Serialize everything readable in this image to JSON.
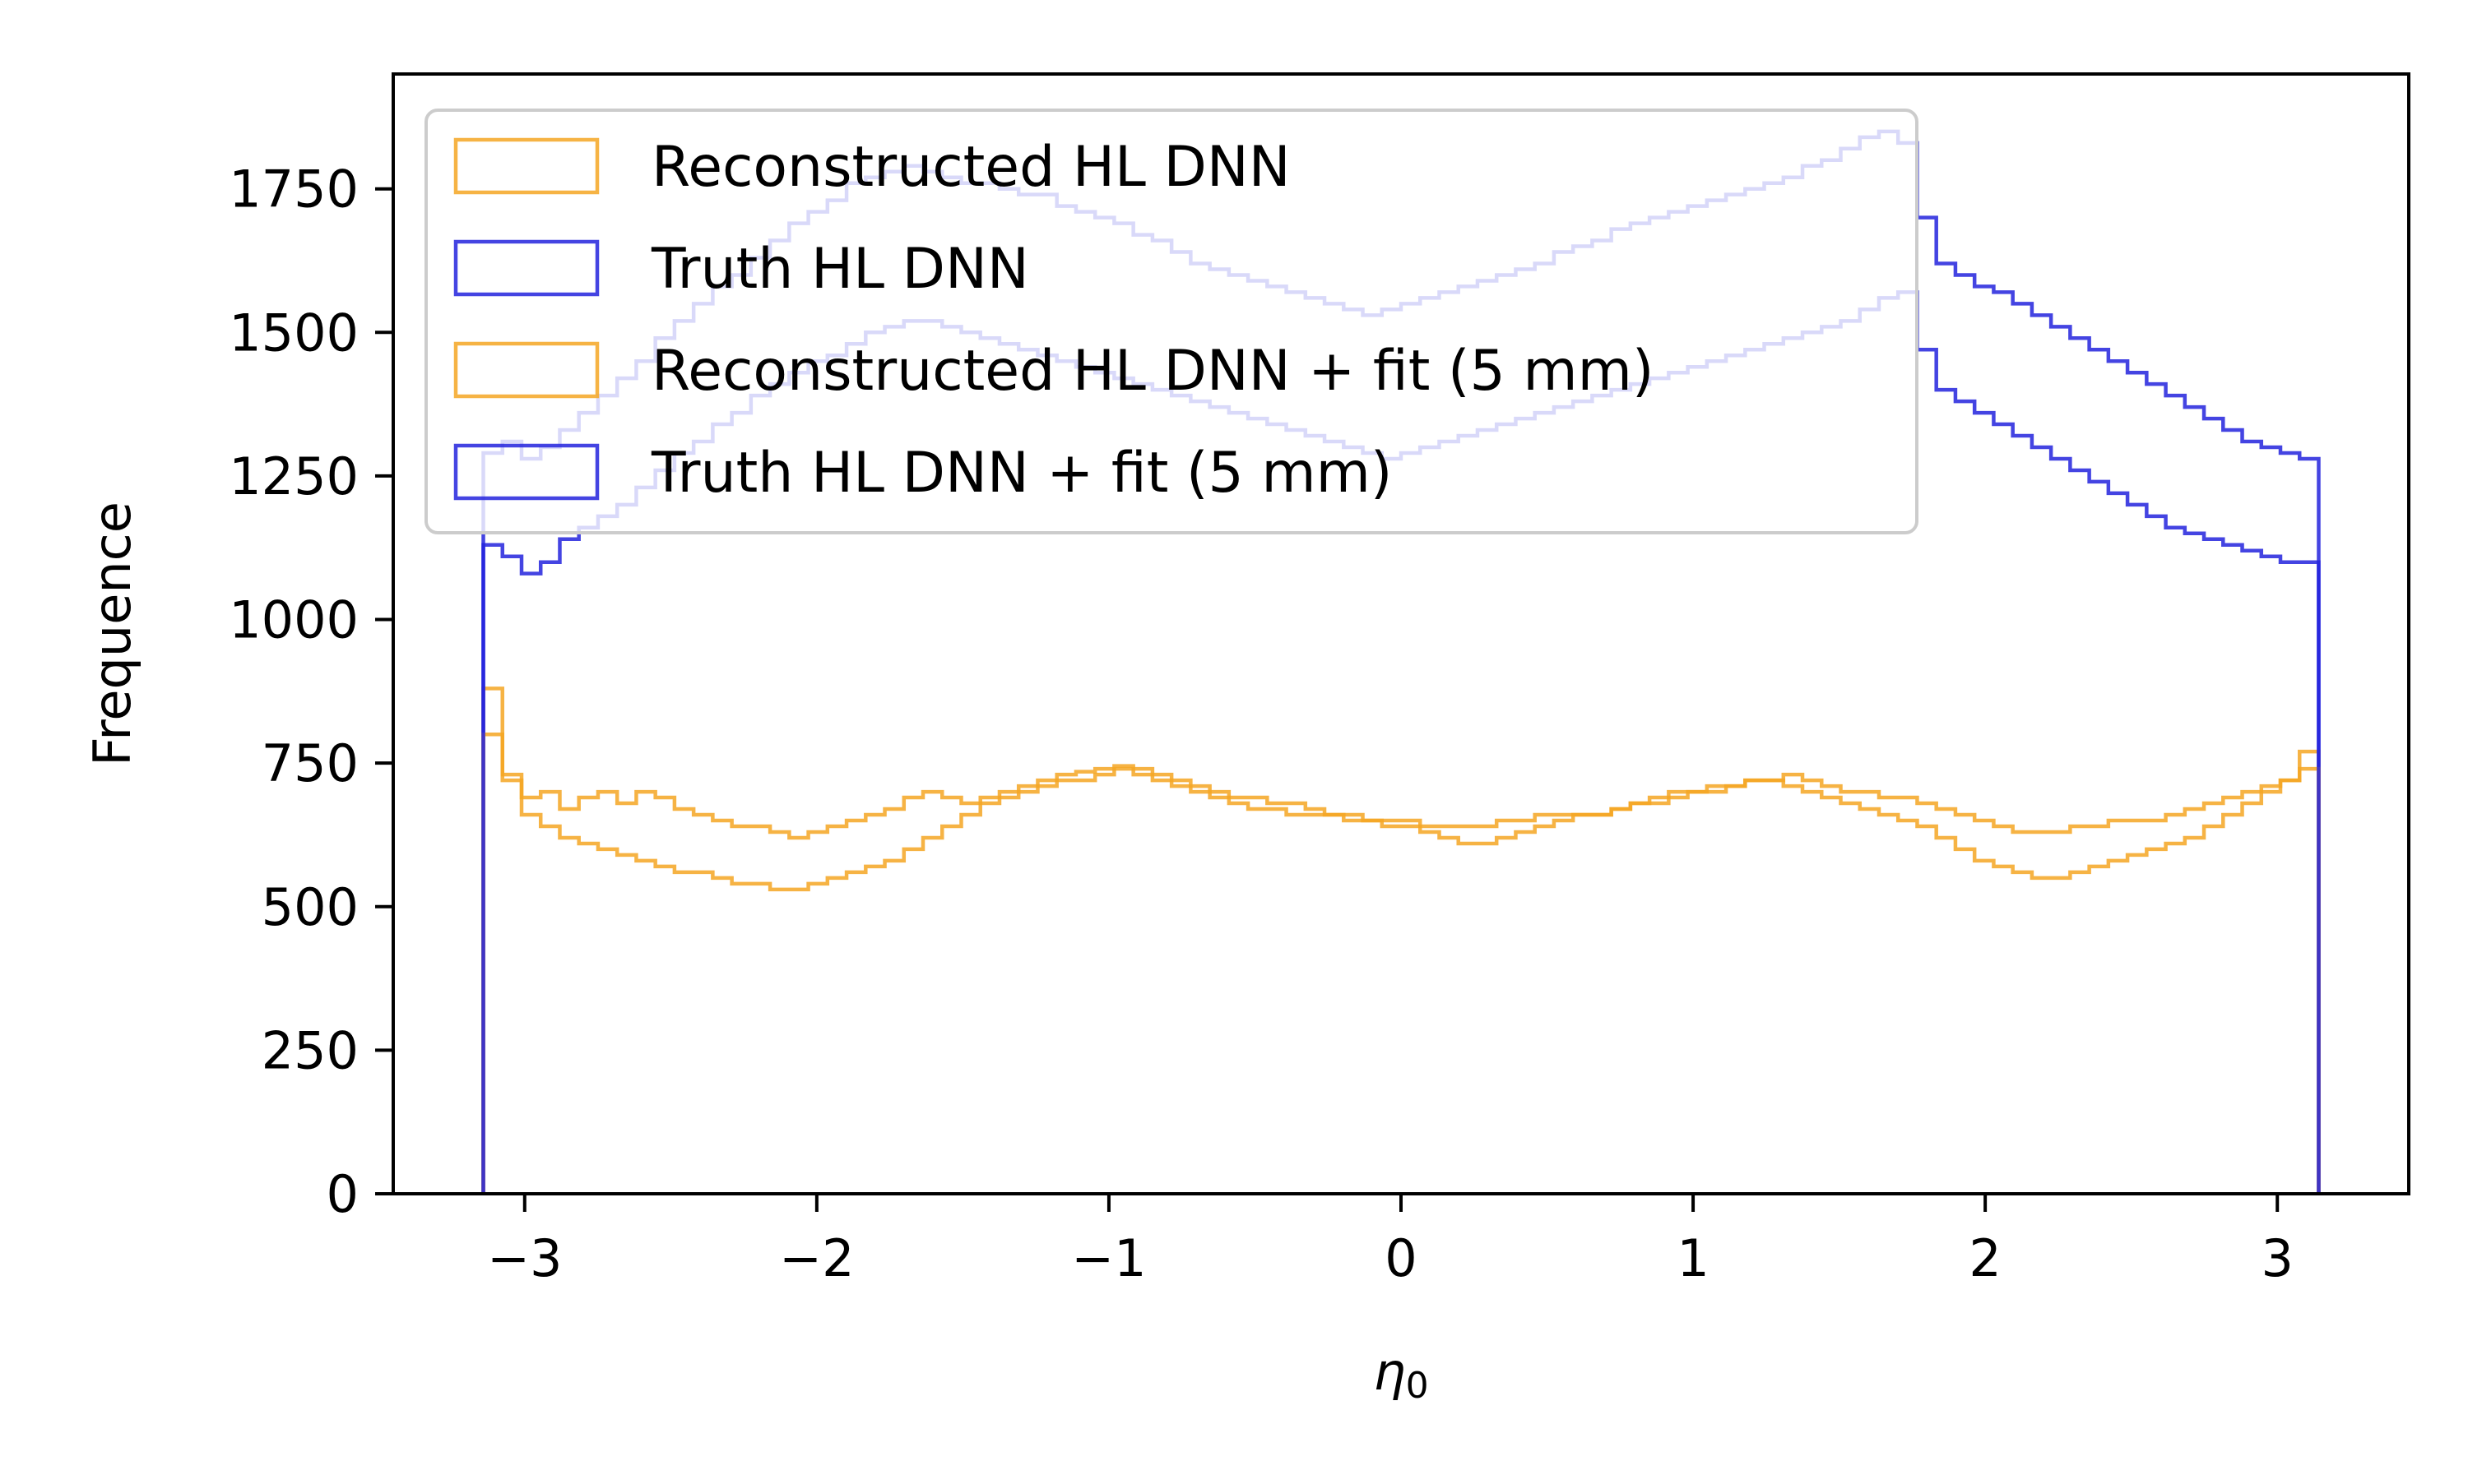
{
  "chart_data": {
    "type": "histogram",
    "title": "",
    "xlabel": "η",
    "xlabel_subscript": "0",
    "ylabel": "Frequence",
    "xlim": [
      -3.45,
      3.45
    ],
    "ylim": [
      0,
      1950
    ],
    "xticks": [
      -3,
      -2,
      -1,
      0,
      1,
      2,
      3
    ],
    "xtick_labels": [
      "−3",
      "−2",
      "−1",
      "0",
      "1",
      "2",
      "3"
    ],
    "yticks": [
      0,
      250,
      500,
      750,
      1000,
      1250,
      1500,
      1750
    ],
    "ytick_labels": [
      "0",
      "250",
      "500",
      "750",
      "1000",
      "1250",
      "1500",
      "1750"
    ],
    "grid": false,
    "legend_position": "top-left",
    "bin_range": [
      -3.14159,
      3.14159
    ],
    "series": [
      {
        "name": "Reconstructed HL DNN",
        "color": "#f5a623",
        "opacity": 0.85,
        "values": [
          880,
          730,
          690,
          700,
          670,
          690,
          700,
          680,
          700,
          690,
          670,
          660,
          650,
          640,
          640,
          630,
          620,
          630,
          640,
          650,
          660,
          670,
          690,
          700,
          690,
          680,
          690,
          700,
          710,
          720,
          730,
          735,
          740,
          745,
          740,
          730,
          720,
          710,
          700,
          690,
          690,
          680,
          680,
          670,
          660,
          660,
          650,
          650,
          650,
          640,
          640,
          640,
          640,
          650,
          650,
          660,
          660,
          660,
          660,
          670,
          680,
          680,
          690,
          700,
          700,
          710,
          720,
          720,
          730,
          720,
          710,
          700,
          700,
          690,
          690,
          680,
          670,
          660,
          650,
          640,
          630,
          630,
          630,
          640,
          640,
          650,
          650,
          650,
          660,
          670,
          680,
          690,
          700,
          710,
          720,
          770
        ]
      },
      {
        "name": "Truth HL DNN",
        "color": "#2323dd",
        "opacity": 0.85,
        "values": [
          1290,
          1310,
          1280,
          1300,
          1330,
          1360,
          1390,
          1420,
          1450,
          1490,
          1520,
          1550,
          1580,
          1600,
          1630,
          1660,
          1690,
          1710,
          1730,
          1760,
          1770,
          1780,
          1790,
          1780,
          1770,
          1760,
          1760,
          1750,
          1740,
          1740,
          1720,
          1710,
          1700,
          1690,
          1670,
          1660,
          1640,
          1620,
          1610,
          1600,
          1590,
          1580,
          1570,
          1560,
          1550,
          1540,
          1530,
          1540,
          1550,
          1560,
          1570,
          1580,
          1590,
          1600,
          1610,
          1620,
          1640,
          1650,
          1660,
          1680,
          1690,
          1700,
          1710,
          1720,
          1730,
          1740,
          1750,
          1760,
          1770,
          1790,
          1800,
          1820,
          1840,
          1850,
          1830,
          1700,
          1620,
          1600,
          1580,
          1570,
          1550,
          1530,
          1510,
          1490,
          1470,
          1450,
          1430,
          1410,
          1390,
          1370,
          1350,
          1330,
          1310,
          1300,
          1290,
          1280
        ]
      },
      {
        "name": "Reconstructed HL DNN + fit (5 mm)",
        "color": "#f5a623",
        "opacity": 0.85,
        "values": [
          800,
          720,
          660,
          640,
          620,
          610,
          600,
          590,
          580,
          570,
          560,
          560,
          550,
          540,
          540,
          530,
          530,
          540,
          550,
          560,
          570,
          580,
          600,
          620,
          640,
          660,
          680,
          690,
          700,
          710,
          720,
          720,
          730,
          740,
          730,
          720,
          710,
          700,
          690,
          680,
          670,
          670,
          660,
          660,
          660,
          650,
          650,
          640,
          640,
          630,
          620,
          610,
          610,
          620,
          630,
          640,
          650,
          660,
          660,
          670,
          680,
          690,
          700,
          700,
          710,
          710,
          720,
          720,
          710,
          700,
          690,
          680,
          670,
          660,
          650,
          640,
          620,
          600,
          580,
          570,
          560,
          550,
          550,
          560,
          570,
          580,
          590,
          600,
          610,
          620,
          640,
          660,
          680,
          700,
          720,
          740
        ]
      },
      {
        "name": "Truth HL DNN + fit (5 mm)",
        "color": "#2323dd",
        "opacity": 0.85,
        "values": [
          1130,
          1110,
          1080,
          1100,
          1140,
          1160,
          1180,
          1200,
          1230,
          1260,
          1290,
          1310,
          1340,
          1360,
          1390,
          1410,
          1430,
          1450,
          1460,
          1480,
          1500,
          1510,
          1520,
          1520,
          1510,
          1500,
          1490,
          1480,
          1470,
          1460,
          1450,
          1440,
          1430,
          1420,
          1410,
          1400,
          1390,
          1380,
          1370,
          1360,
          1350,
          1340,
          1330,
          1320,
          1310,
          1300,
          1290,
          1280,
          1290,
          1300,
          1310,
          1320,
          1330,
          1340,
          1350,
          1360,
          1370,
          1380,
          1390,
          1400,
          1410,
          1420,
          1430,
          1440,
          1450,
          1460,
          1470,
          1480,
          1490,
          1500,
          1510,
          1520,
          1540,
          1560,
          1570,
          1470,
          1400,
          1380,
          1360,
          1340,
          1320,
          1300,
          1280,
          1260,
          1240,
          1220,
          1200,
          1180,
          1160,
          1150,
          1140,
          1130,
          1120,
          1110,
          1100,
          1100
        ]
      }
    ]
  }
}
